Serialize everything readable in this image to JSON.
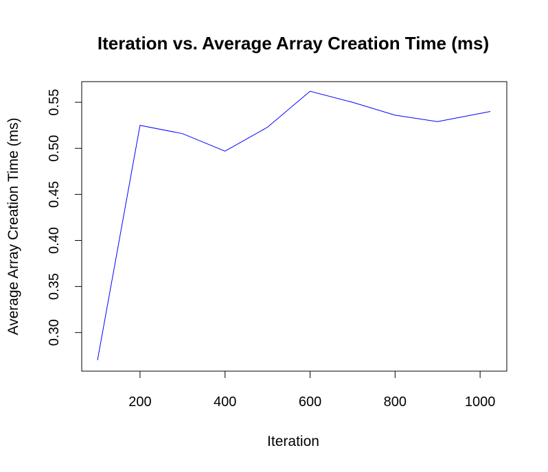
{
  "chart_data": {
    "type": "line",
    "title": "Iteration vs. Average Array Creation Time (ms)",
    "xlabel": "Iteration",
    "ylabel": "Average Array Creation Time (ms)",
    "xlim": [
      100,
      1024
    ],
    "ylim": [
      0.27,
      0.562
    ],
    "xticks": [
      200,
      400,
      600,
      800,
      1000
    ],
    "yticks": [
      0.3,
      0.35,
      0.4,
      0.45,
      0.5,
      0.55
    ],
    "ytick_labels": [
      "0.30",
      "0.35",
      "0.40",
      "0.45",
      "0.50",
      "0.55"
    ],
    "grid": false,
    "line_color": "#0000ff",
    "x": [
      100,
      200,
      300,
      400,
      500,
      600,
      700,
      800,
      900,
      1024
    ],
    "y": [
      0.27,
      0.525,
      0.516,
      0.497,
      0.523,
      0.562,
      0.55,
      0.536,
      0.529,
      0.54
    ]
  }
}
